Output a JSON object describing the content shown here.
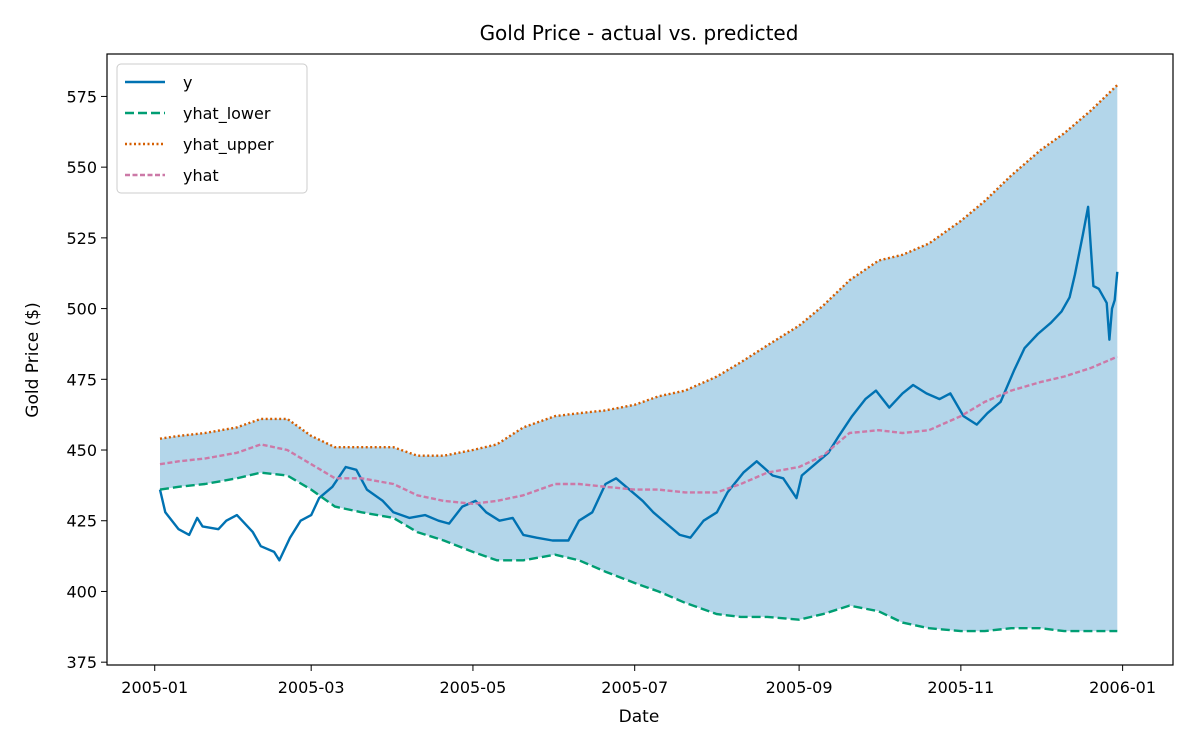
{
  "chart_data": {
    "type": "line",
    "title": "Gold Price - actual vs. predicted",
    "xlabel": "Date",
    "ylabel": "Gold Price ($)",
    "xlim": [
      "2004-12-14",
      "2006-01-20"
    ],
    "ylim": [
      374,
      590
    ],
    "x_ticks": [
      "2005-01",
      "2005-03",
      "2005-05",
      "2005-07",
      "2005-09",
      "2005-11",
      "2006-01"
    ],
    "y_ticks": [
      375,
      400,
      425,
      450,
      475,
      500,
      525,
      550,
      575
    ],
    "legend_position": "top-left",
    "band": {
      "between": [
        "yhat_lower",
        "yhat_upper"
      ],
      "color": "#b3d6ea"
    },
    "series": [
      {
        "name": "y",
        "color": "#0072b2",
        "style": "solid",
        "points": [
          [
            "2005-01-03",
            436
          ],
          [
            "2005-01-05",
            428
          ],
          [
            "2005-01-10",
            422
          ],
          [
            "2005-01-14",
            420
          ],
          [
            "2005-01-17",
            426
          ],
          [
            "2005-01-19",
            423
          ],
          [
            "2005-01-25",
            422
          ],
          [
            "2005-01-28",
            425
          ],
          [
            "2005-02-01",
            427
          ],
          [
            "2005-02-03",
            425
          ],
          [
            "2005-02-07",
            421
          ],
          [
            "2005-02-10",
            416
          ],
          [
            "2005-02-15",
            414
          ],
          [
            "2005-02-17",
            411
          ],
          [
            "2005-02-21",
            419
          ],
          [
            "2005-02-25",
            425
          ],
          [
            "2005-03-01",
            427
          ],
          [
            "2005-03-04",
            433
          ],
          [
            "2005-03-09",
            437
          ],
          [
            "2005-03-14",
            444
          ],
          [
            "2005-03-18",
            443
          ],
          [
            "2005-03-22",
            436
          ],
          [
            "2005-03-28",
            432
          ],
          [
            "2005-04-01",
            428
          ],
          [
            "2005-04-07",
            426
          ],
          [
            "2005-04-13",
            427
          ],
          [
            "2005-04-18",
            425
          ],
          [
            "2005-04-22",
            424
          ],
          [
            "2005-04-27",
            430
          ],
          [
            "2005-05-02",
            432
          ],
          [
            "2005-05-06",
            428
          ],
          [
            "2005-05-11",
            425
          ],
          [
            "2005-05-16",
            426
          ],
          [
            "2005-05-20",
            420
          ],
          [
            "2005-05-25",
            419
          ],
          [
            "2005-05-31",
            418
          ],
          [
            "2005-06-06",
            418
          ],
          [
            "2005-06-10",
            425
          ],
          [
            "2005-06-15",
            428
          ],
          [
            "2005-06-20",
            438
          ],
          [
            "2005-06-24",
            440
          ],
          [
            "2005-06-29",
            436
          ],
          [
            "2005-07-04",
            432
          ],
          [
            "2005-07-08",
            428
          ],
          [
            "2005-07-13",
            424
          ],
          [
            "2005-07-18",
            420
          ],
          [
            "2005-07-22",
            419
          ],
          [
            "2005-07-27",
            425
          ],
          [
            "2005-08-01",
            428
          ],
          [
            "2005-08-05",
            435
          ],
          [
            "2005-08-11",
            442
          ],
          [
            "2005-08-16",
            446
          ],
          [
            "2005-08-22",
            441
          ],
          [
            "2005-08-26",
            440
          ],
          [
            "2005-08-31",
            433
          ],
          [
            "2005-09-02",
            441
          ],
          [
            "2005-09-07",
            445
          ],
          [
            "2005-09-12",
            449
          ],
          [
            "2005-09-16",
            455
          ],
          [
            "2005-09-21",
            462
          ],
          [
            "2005-09-26",
            468
          ],
          [
            "2005-09-30",
            471
          ],
          [
            "2005-10-05",
            465
          ],
          [
            "2005-10-10",
            470
          ],
          [
            "2005-10-14",
            473
          ],
          [
            "2005-10-19",
            470
          ],
          [
            "2005-10-24",
            468
          ],
          [
            "2005-10-28",
            470
          ],
          [
            "2005-11-02",
            462
          ],
          [
            "2005-11-07",
            459
          ],
          [
            "2005-11-11",
            463
          ],
          [
            "2005-11-16",
            467
          ],
          [
            "2005-11-21",
            478
          ],
          [
            "2005-11-25",
            486
          ],
          [
            "2005-11-30",
            491
          ],
          [
            "2005-12-05",
            495
          ],
          [
            "2005-12-09",
            499
          ],
          [
            "2005-12-12",
            504
          ],
          [
            "2005-12-14",
            512
          ],
          [
            "2005-12-17",
            526
          ],
          [
            "2005-12-19",
            536
          ],
          [
            "2005-12-21",
            508
          ],
          [
            "2005-12-23",
            507
          ],
          [
            "2005-12-26",
            502
          ],
          [
            "2005-12-27",
            489
          ],
          [
            "2005-12-28",
            500
          ],
          [
            "2005-12-29",
            503
          ],
          [
            "2005-12-30",
            513
          ]
        ]
      },
      {
        "name": "yhat_lower",
        "color": "#009e73",
        "style": "dashed",
        "points": [
          [
            "2005-01-03",
            436
          ],
          [
            "2005-01-10",
            437
          ],
          [
            "2005-01-20",
            438
          ],
          [
            "2005-02-01",
            440
          ],
          [
            "2005-02-10",
            442
          ],
          [
            "2005-02-20",
            441
          ],
          [
            "2005-03-01",
            436
          ],
          [
            "2005-03-10",
            430
          ],
          [
            "2005-03-20",
            428
          ],
          [
            "2005-04-01",
            426
          ],
          [
            "2005-04-10",
            421
          ],
          [
            "2005-04-20",
            418
          ],
          [
            "2005-05-01",
            414
          ],
          [
            "2005-05-10",
            411
          ],
          [
            "2005-05-20",
            411
          ],
          [
            "2005-06-01",
            413
          ],
          [
            "2005-06-10",
            411
          ],
          [
            "2005-06-20",
            407
          ],
          [
            "2005-07-01",
            403
          ],
          [
            "2005-07-10",
            400
          ],
          [
            "2005-07-20",
            396
          ],
          [
            "2005-08-01",
            392
          ],
          [
            "2005-08-10",
            391
          ],
          [
            "2005-08-20",
            391
          ],
          [
            "2005-09-01",
            390
          ],
          [
            "2005-09-10",
            392
          ],
          [
            "2005-09-20",
            395
          ],
          [
            "2005-10-01",
            393
          ],
          [
            "2005-10-10",
            389
          ],
          [
            "2005-10-20",
            387
          ],
          [
            "2005-11-01",
            386
          ],
          [
            "2005-11-10",
            386
          ],
          [
            "2005-11-20",
            387
          ],
          [
            "2005-12-01",
            387
          ],
          [
            "2005-12-10",
            386
          ],
          [
            "2005-12-20",
            386
          ],
          [
            "2005-12-30",
            386
          ]
        ]
      },
      {
        "name": "yhat_upper",
        "color": "#d55e00",
        "style": "dotted",
        "points": [
          [
            "2005-01-03",
            454
          ],
          [
            "2005-01-10",
            455
          ],
          [
            "2005-01-20",
            456
          ],
          [
            "2005-02-01",
            458
          ],
          [
            "2005-02-10",
            461
          ],
          [
            "2005-02-20",
            461
          ],
          [
            "2005-03-01",
            455
          ],
          [
            "2005-03-10",
            451
          ],
          [
            "2005-03-20",
            451
          ],
          [
            "2005-04-01",
            451
          ],
          [
            "2005-04-10",
            448
          ],
          [
            "2005-04-20",
            448
          ],
          [
            "2005-05-01",
            450
          ],
          [
            "2005-05-10",
            452
          ],
          [
            "2005-05-20",
            458
          ],
          [
            "2005-06-01",
            462
          ],
          [
            "2005-06-10",
            463
          ],
          [
            "2005-06-20",
            464
          ],
          [
            "2005-07-01",
            466
          ],
          [
            "2005-07-10",
            469
          ],
          [
            "2005-07-20",
            471
          ],
          [
            "2005-08-01",
            476
          ],
          [
            "2005-08-10",
            481
          ],
          [
            "2005-08-20",
            487
          ],
          [
            "2005-09-01",
            494
          ],
          [
            "2005-09-10",
            501
          ],
          [
            "2005-09-20",
            510
          ],
          [
            "2005-10-01",
            517
          ],
          [
            "2005-10-10",
            519
          ],
          [
            "2005-10-20",
            523
          ],
          [
            "2005-11-01",
            531
          ],
          [
            "2005-11-10",
            538
          ],
          [
            "2005-11-20",
            547
          ],
          [
            "2005-12-01",
            556
          ],
          [
            "2005-12-10",
            562
          ],
          [
            "2005-12-20",
            570
          ],
          [
            "2005-12-30",
            579
          ]
        ]
      },
      {
        "name": "yhat",
        "color": "#cc79a7",
        "style": "dashdot",
        "points": [
          [
            "2005-01-03",
            445
          ],
          [
            "2005-01-10",
            446
          ],
          [
            "2005-01-20",
            447
          ],
          [
            "2005-02-01",
            449
          ],
          [
            "2005-02-10",
            452
          ],
          [
            "2005-02-20",
            450
          ],
          [
            "2005-03-01",
            445
          ],
          [
            "2005-03-10",
            440
          ],
          [
            "2005-03-20",
            440
          ],
          [
            "2005-04-01",
            438
          ],
          [
            "2005-04-10",
            434
          ],
          [
            "2005-04-20",
            432
          ],
          [
            "2005-05-01",
            431
          ],
          [
            "2005-05-10",
            432
          ],
          [
            "2005-05-20",
            434
          ],
          [
            "2005-06-01",
            438
          ],
          [
            "2005-06-10",
            438
          ],
          [
            "2005-06-20",
            437
          ],
          [
            "2005-07-01",
            436
          ],
          [
            "2005-07-10",
            436
          ],
          [
            "2005-07-20",
            435
          ],
          [
            "2005-08-01",
            435
          ],
          [
            "2005-08-10",
            438
          ],
          [
            "2005-08-20",
            442
          ],
          [
            "2005-09-01",
            444
          ],
          [
            "2005-09-10",
            448
          ],
          [
            "2005-09-20",
            456
          ],
          [
            "2005-10-01",
            457
          ],
          [
            "2005-10-10",
            456
          ],
          [
            "2005-10-20",
            457
          ],
          [
            "2005-11-01",
            462
          ],
          [
            "2005-11-10",
            467
          ],
          [
            "2005-11-20",
            471
          ],
          [
            "2005-12-01",
            474
          ],
          [
            "2005-12-10",
            476
          ],
          [
            "2005-12-20",
            479
          ],
          [
            "2005-12-30",
            483
          ]
        ]
      }
    ]
  }
}
